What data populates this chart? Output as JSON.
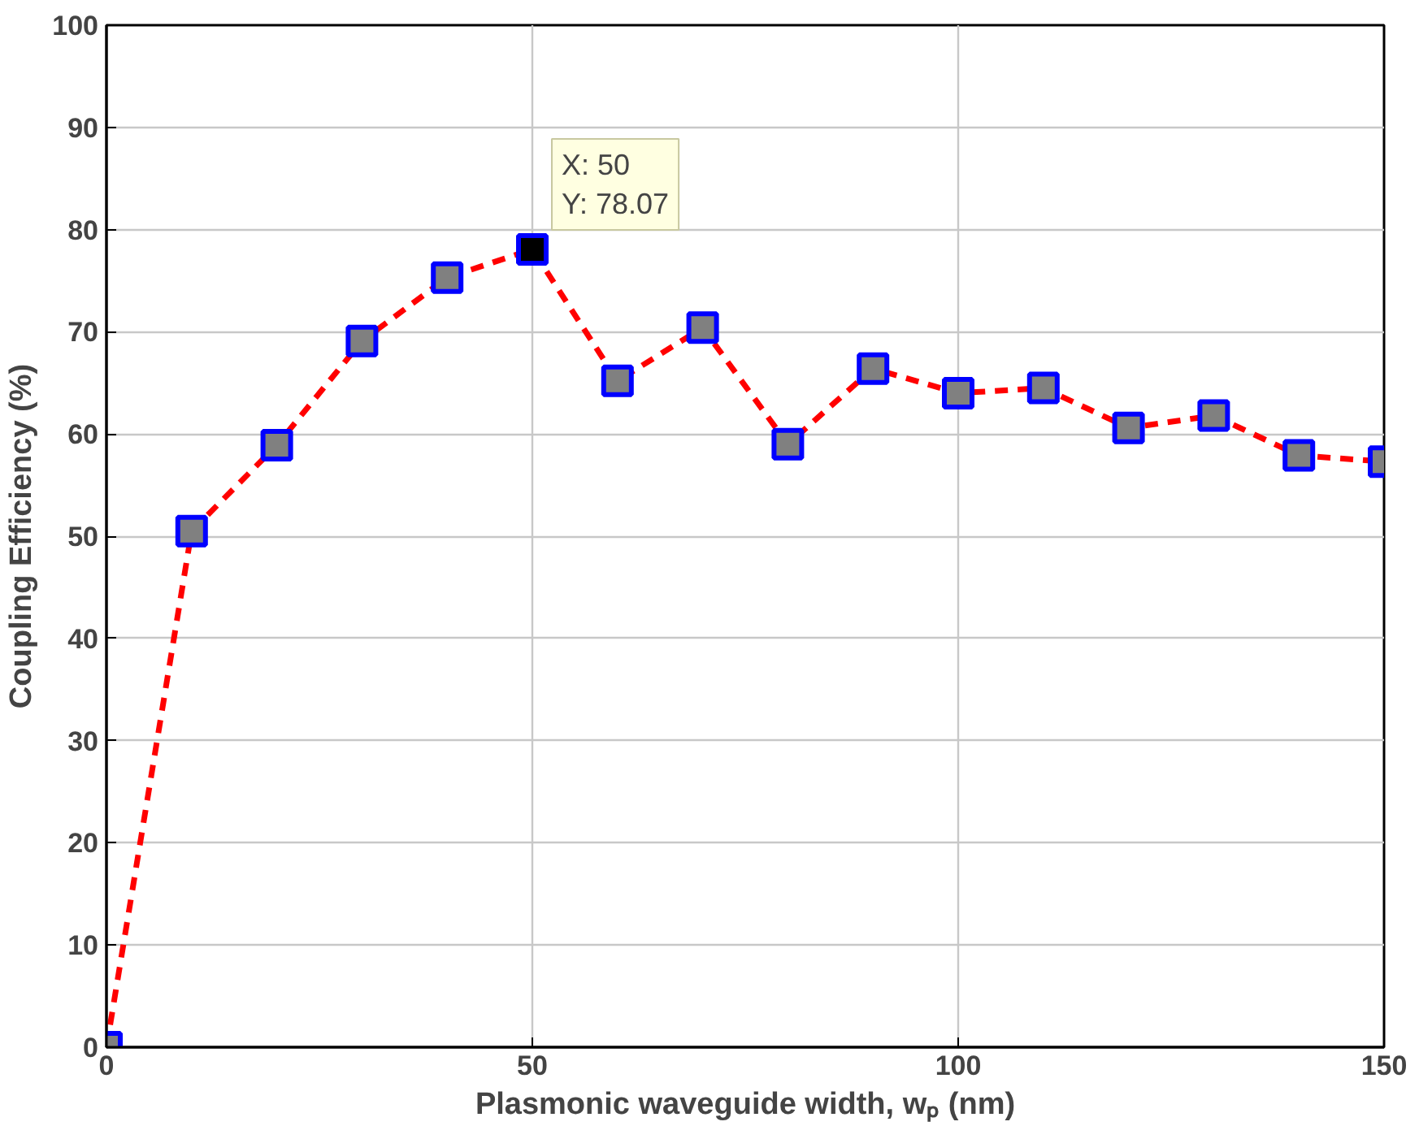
{
  "chart_data": {
    "type": "line",
    "xlabel": "Plasmonic waveguide width, wₚ (nm)",
    "ylabel": "Coupling Efficiency (%)",
    "x": [
      0,
      10,
      20,
      30,
      40,
      50,
      60,
      70,
      80,
      90,
      100,
      110,
      120,
      130,
      140,
      150
    ],
    "series": [
      {
        "color": "#ff0000",
        "colors": [
          "#808080",
          "#808080",
          "#808080",
          "#808080",
          "#808080",
          "#000000",
          "#808080",
          "#808080",
          "#808080",
          "#808080",
          "#808080",
          "#808080",
          "#808080",
          "#808080",
          "#808080",
          "#808080"
        ],
        "values": [
          0,
          50.5,
          58.9,
          69.1,
          75.3,
          78.07,
          65.2,
          70.4,
          59.0,
          66.4,
          64.0,
          64.5,
          60.6,
          61.8,
          57.9,
          57.3
        ]
      }
    ],
    "xlim": [
      0,
      150
    ],
    "xticks": [
      0,
      50,
      100,
      150
    ],
    "ylim": [
      0,
      100
    ],
    "yticks": [
      0,
      10,
      20,
      30,
      40,
      50,
      60,
      70,
      80,
      90,
      100
    ],
    "grid": true,
    "marker": "square",
    "line_style": "dashed",
    "annotations": [
      {
        "text": "X: 50\nY: 78.07",
        "x": 50,
        "y": 78.07
      }
    ]
  }
}
